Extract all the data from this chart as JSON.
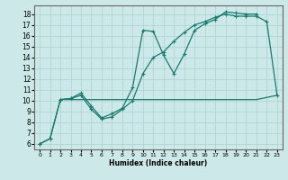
{
  "xlabel": "Humidex (Indice chaleur)",
  "background_color": "#cce8e8",
  "grid_color": "#b0d4d4",
  "line_color": "#1a7a6e",
  "xlim": [
    -0.5,
    23.5
  ],
  "ylim": [
    5.5,
    18.8
  ],
  "xticks": [
    0,
    1,
    2,
    3,
    4,
    5,
    6,
    7,
    8,
    9,
    10,
    11,
    12,
    13,
    14,
    15,
    16,
    17,
    18,
    19,
    20,
    21,
    22,
    23
  ],
  "yticks": [
    6,
    7,
    8,
    9,
    10,
    11,
    12,
    13,
    14,
    15,
    16,
    17,
    18
  ],
  "line1_x": [
    0,
    1,
    2,
    3,
    4,
    5,
    6,
    7,
    8,
    9,
    10,
    11,
    12,
    13,
    14,
    15,
    16,
    17,
    18,
    19,
    20,
    21
  ],
  "line1_y": [
    6.0,
    6.5,
    10.1,
    10.2,
    10.7,
    9.5,
    8.4,
    8.8,
    9.3,
    11.2,
    16.5,
    16.4,
    14.2,
    12.5,
    14.3,
    16.5,
    17.1,
    17.5,
    18.2,
    18.1,
    18.0,
    18.0
  ],
  "line2_x": [
    0,
    1,
    2,
    3,
    4,
    5,
    6,
    7,
    8,
    9,
    10,
    11,
    12,
    13,
    14,
    15,
    16,
    17,
    18,
    19,
    20,
    21,
    22,
    23
  ],
  "line2_y": [
    6.0,
    6.5,
    10.1,
    10.2,
    10.5,
    9.2,
    8.3,
    8.5,
    9.2,
    10.0,
    12.5,
    14.0,
    14.5,
    15.5,
    16.3,
    17.0,
    17.3,
    17.7,
    18.0,
    17.8,
    17.8,
    17.8,
    17.3,
    10.5
  ],
  "line3_x": [
    2,
    7,
    21,
    23
  ],
  "line3_y": [
    10.1,
    10.1,
    10.1,
    10.5
  ],
  "marker": "+",
  "markersize": 3.5,
  "linewidth": 0.9
}
